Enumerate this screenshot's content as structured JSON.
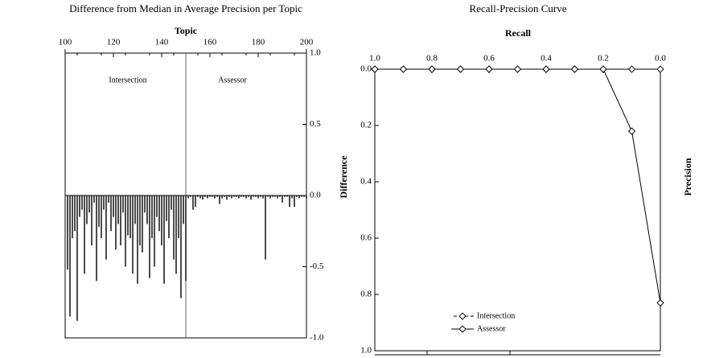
{
  "chart_data": [
    {
      "type": "line",
      "title": "Recall-Precision Curve",
      "xlabel": "Recall",
      "ylabel": "Precision",
      "xlim": [
        0.0,
        1.0
      ],
      "ylim": [
        0.0,
        1.0
      ],
      "xticks": [
        "0.0",
        "0.2",
        "0.4",
        "0.6",
        "0.8",
        "1.0"
      ],
      "yticks": [
        "0.0",
        "0.2",
        "0.4",
        "0.6",
        "0.8",
        "1.0"
      ],
      "legend": [
        "Assessor",
        "Intersection"
      ],
      "legend_position": "bottom-right",
      "series": [
        {
          "name": "Assessor",
          "x": [
            0.0,
            0.1,
            0.2,
            0.3,
            0.4,
            0.5,
            0.6,
            0.7,
            0.8,
            0.9,
            1.0
          ],
          "y": [
            0.83,
            0.22,
            0.0,
            0.0,
            0.0,
            0.0,
            0.0,
            0.0,
            0.0,
            0.0,
            0.0
          ]
        },
        {
          "name": "Intersection",
          "x": [
            0.0,
            0.1,
            0.2,
            0.3,
            0.4,
            0.5,
            0.6,
            0.7,
            0.8,
            0.9,
            1.0
          ],
          "y": [
            0.0,
            0.0,
            0.0,
            0.0,
            0.0,
            0.0,
            0.0,
            0.0,
            0.0,
            0.0,
            0.0
          ]
        }
      ]
    },
    {
      "type": "bar",
      "title": "Difference from Median in Average Precision per Topic",
      "xlabel": "Topic",
      "ylabel": "Difference",
      "xlim": [
        100,
        200
      ],
      "ylim": [
        -1.0,
        1.0
      ],
      "xticks": [
        "100",
        "120",
        "140",
        "160",
        "180",
        "200"
      ],
      "yticks": [
        "-1.0",
        "-0.5",
        "0.0",
        "0.5",
        "1.0"
      ],
      "panels": [
        "Assessor",
        "Intersection"
      ],
      "panel_split": 150,
      "topics": [
        101,
        102,
        103,
        104,
        105,
        106,
        107,
        108,
        109,
        110,
        111,
        112,
        113,
        114,
        115,
        116,
        117,
        118,
        119,
        120,
        121,
        122,
        123,
        124,
        125,
        126,
        127,
        128,
        129,
        130,
        131,
        132,
        133,
        134,
        135,
        136,
        137,
        138,
        139,
        140,
        141,
        142,
        143,
        144,
        145,
        146,
        147,
        148,
        149,
        150,
        151,
        152,
        153,
        154,
        155,
        156,
        157,
        158,
        159,
        160,
        161,
        162,
        163,
        164,
        165,
        166,
        167,
        168,
        169,
        170,
        171,
        172,
        173,
        174,
        175,
        176,
        177,
        178,
        179,
        180,
        181,
        182,
        183,
        184,
        185,
        186,
        187,
        188,
        189,
        190,
        191,
        192,
        193,
        194,
        195,
        196,
        197,
        198,
        199,
        200
      ],
      "values": [
        -0.52,
        -0.85,
        -0.3,
        -0.25,
        -0.88,
        -0.15,
        -0.1,
        -0.55,
        -0.2,
        -0.12,
        -0.35,
        -0.05,
        -0.6,
        -0.22,
        -0.3,
        -0.1,
        -0.45,
        -0.05,
        -0.25,
        -0.15,
        -0.38,
        -0.2,
        -0.35,
        -0.12,
        -0.5,
        -0.28,
        -0.3,
        -0.55,
        -0.2,
        -0.62,
        -0.35,
        -0.4,
        -0.12,
        -0.2,
        -0.58,
        -0.3,
        -0.5,
        -0.15,
        -0.25,
        -0.35,
        -0.62,
        -0.18,
        -0.3,
        -0.1,
        -0.45,
        -0.55,
        -0.3,
        -0.72,
        -0.2,
        -0.6,
        -0.02,
        -0.01,
        -0.1,
        -0.08,
        -0.01,
        -0.02,
        -0.03,
        -0.01,
        -0.02,
        -0.01,
        -0.01,
        -0.02,
        -0.01,
        -0.06,
        -0.02,
        -0.01,
        -0.03,
        -0.01,
        -0.02,
        -0.01,
        -0.01,
        -0.02,
        -0.01,
        -0.01,
        -0.02,
        -0.01,
        -0.03,
        -0.01,
        -0.01,
        -0.02,
        -0.01,
        -0.02,
        -0.45,
        -0.01,
        -0.02,
        -0.01,
        -0.01,
        -0.02,
        -0.01,
        -0.05,
        -0.01,
        -0.01,
        -0.08,
        -0.02,
        -0.08,
        -0.01,
        -0.02,
        -0.01,
        -0.01,
        -0.02
      ]
    }
  ]
}
